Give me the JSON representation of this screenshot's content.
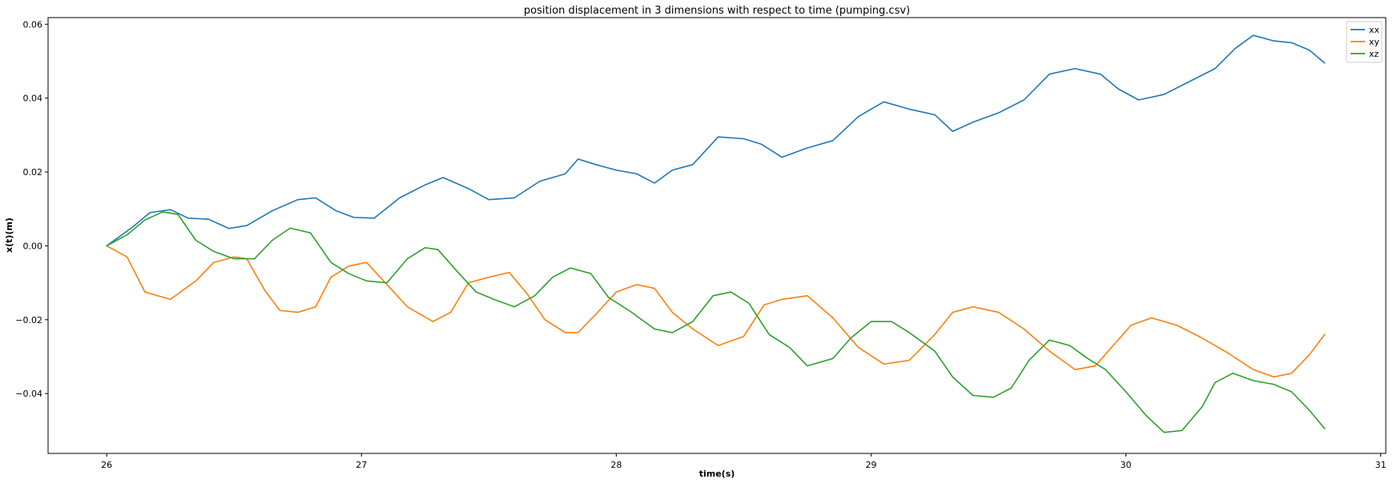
{
  "chart_data": {
    "type": "line",
    "title": "position displacement in 3 dimensions with respect to time (pumping.csv)",
    "xlabel": "time(s)",
    "ylabel": "x(t)(m)",
    "xlim": [
      25.77,
      31.02
    ],
    "ylim": [
      -0.0562,
      0.0618
    ],
    "xticks": [
      26,
      27,
      28,
      29,
      30,
      31
    ],
    "xtick_labels": [
      "26",
      "27",
      "28",
      "29",
      "30",
      "31"
    ],
    "yticks": [
      -0.04,
      -0.02,
      0.0,
      0.02,
      0.04,
      0.06
    ],
    "ytick_labels": [
      "−0.04",
      "−0.02",
      "0.00",
      "0.02",
      "0.04",
      "0.06"
    ],
    "grid": false,
    "legend_position": "top-right",
    "series": [
      {
        "name": "xx",
        "color": "#1f77b4",
        "x": [
          26.0,
          26.1,
          26.17,
          26.25,
          26.32,
          26.4,
          26.48,
          26.55,
          26.65,
          26.75,
          26.82,
          26.9,
          26.97,
          27.05,
          27.15,
          27.25,
          27.32,
          27.42,
          27.5,
          27.6,
          27.7,
          27.8,
          27.85,
          27.92,
          28.0,
          28.08,
          28.15,
          28.22,
          28.3,
          28.4,
          28.5,
          28.57,
          28.65,
          28.75,
          28.85,
          28.95,
          29.05,
          29.15,
          29.25,
          29.32,
          29.4,
          29.5,
          29.6,
          29.7,
          29.8,
          29.9,
          29.97,
          30.05,
          30.15,
          30.25,
          30.35,
          30.43,
          30.5,
          30.58,
          30.65,
          30.72,
          30.78
        ],
        "y": [
          0.0,
          0.005,
          0.009,
          0.0098,
          0.0075,
          0.0072,
          0.0047,
          0.0055,
          0.0095,
          0.0125,
          0.013,
          0.0095,
          0.0077,
          0.0075,
          0.013,
          0.0165,
          0.0185,
          0.0155,
          0.0125,
          0.013,
          0.0175,
          0.0195,
          0.0235,
          0.022,
          0.0205,
          0.0195,
          0.017,
          0.0205,
          0.022,
          0.0295,
          0.029,
          0.0275,
          0.024,
          0.0265,
          0.0285,
          0.035,
          0.039,
          0.037,
          0.0355,
          0.031,
          0.0335,
          0.036,
          0.0395,
          0.0465,
          0.048,
          0.0465,
          0.0425,
          0.0395,
          0.041,
          0.0445,
          0.048,
          0.0535,
          0.057,
          0.0555,
          0.055,
          0.053,
          0.0495
        ]
      },
      {
        "name": "xy",
        "color": "#ff7f0e",
        "x": [
          26.0,
          26.08,
          26.15,
          26.25,
          26.35,
          26.42,
          26.5,
          26.55,
          26.62,
          26.68,
          26.75,
          26.82,
          26.88,
          26.95,
          27.02,
          27.1,
          27.18,
          27.28,
          27.35,
          27.42,
          27.5,
          27.58,
          27.65,
          27.72,
          27.8,
          27.85,
          27.92,
          28.0,
          28.08,
          28.15,
          28.22,
          28.3,
          28.4,
          28.5,
          28.58,
          28.65,
          28.75,
          28.85,
          28.95,
          29.05,
          29.15,
          29.25,
          29.32,
          29.4,
          29.5,
          29.6,
          29.7,
          29.8,
          29.88,
          29.95,
          30.02,
          30.1,
          30.2,
          30.3,
          30.4,
          30.5,
          30.58,
          30.65,
          30.72,
          30.78
        ],
        "y": [
          0.0,
          -0.003,
          -0.0125,
          -0.0145,
          -0.0095,
          -0.0045,
          -0.003,
          -0.0035,
          -0.012,
          -0.0175,
          -0.018,
          -0.0165,
          -0.0085,
          -0.0055,
          -0.0045,
          -0.0105,
          -0.0165,
          -0.0205,
          -0.018,
          -0.01,
          -0.0085,
          -0.0072,
          -0.013,
          -0.02,
          -0.0235,
          -0.0235,
          -0.0185,
          -0.0125,
          -0.0105,
          -0.0115,
          -0.018,
          -0.0225,
          -0.027,
          -0.0245,
          -0.016,
          -0.0145,
          -0.0135,
          -0.0195,
          -0.0275,
          -0.032,
          -0.031,
          -0.024,
          -0.018,
          -0.0165,
          -0.018,
          -0.0225,
          -0.0285,
          -0.0335,
          -0.0325,
          -0.027,
          -0.0215,
          -0.0195,
          -0.0215,
          -0.025,
          -0.029,
          -0.0335,
          -0.0355,
          -0.0345,
          -0.0295,
          -0.024
        ]
      },
      {
        "name": "xz",
        "color": "#2ca02c",
        "x": [
          26.0,
          26.08,
          26.15,
          26.22,
          26.28,
          26.35,
          26.42,
          26.5,
          26.58,
          26.65,
          26.72,
          26.8,
          26.88,
          26.95,
          27.02,
          27.1,
          27.18,
          27.25,
          27.3,
          27.37,
          27.45,
          27.52,
          27.6,
          27.68,
          27.75,
          27.82,
          27.9,
          27.97,
          28.05,
          28.15,
          28.22,
          28.3,
          28.38,
          28.45,
          28.52,
          28.6,
          28.68,
          28.75,
          28.85,
          28.92,
          29.0,
          29.08,
          29.15,
          29.25,
          29.32,
          29.4,
          29.48,
          29.55,
          29.62,
          29.7,
          29.78,
          29.85,
          29.92,
          30.0,
          30.08,
          30.15,
          30.22,
          30.3,
          30.35,
          30.42,
          30.5,
          30.58,
          30.65,
          30.72,
          30.78
        ],
        "y": [
          0.0,
          0.003,
          0.007,
          0.0092,
          0.0085,
          0.0015,
          -0.0015,
          -0.0035,
          -0.0035,
          0.0015,
          0.0048,
          0.0035,
          -0.0045,
          -0.0075,
          -0.0095,
          -0.01,
          -0.0035,
          -0.0005,
          -0.001,
          -0.0065,
          -0.0125,
          -0.0145,
          -0.0165,
          -0.0135,
          -0.0085,
          -0.006,
          -0.0075,
          -0.014,
          -0.0175,
          -0.0225,
          -0.0235,
          -0.0205,
          -0.0135,
          -0.0125,
          -0.0155,
          -0.024,
          -0.0275,
          -0.0325,
          -0.0305,
          -0.025,
          -0.0205,
          -0.0205,
          -0.0235,
          -0.0285,
          -0.0355,
          -0.0405,
          -0.041,
          -0.0385,
          -0.031,
          -0.0255,
          -0.027,
          -0.0305,
          -0.0335,
          -0.0395,
          -0.046,
          -0.0505,
          -0.05,
          -0.0435,
          -0.037,
          -0.0345,
          -0.0365,
          -0.0375,
          -0.0395,
          -0.0445,
          -0.0495
        ]
      }
    ]
  }
}
